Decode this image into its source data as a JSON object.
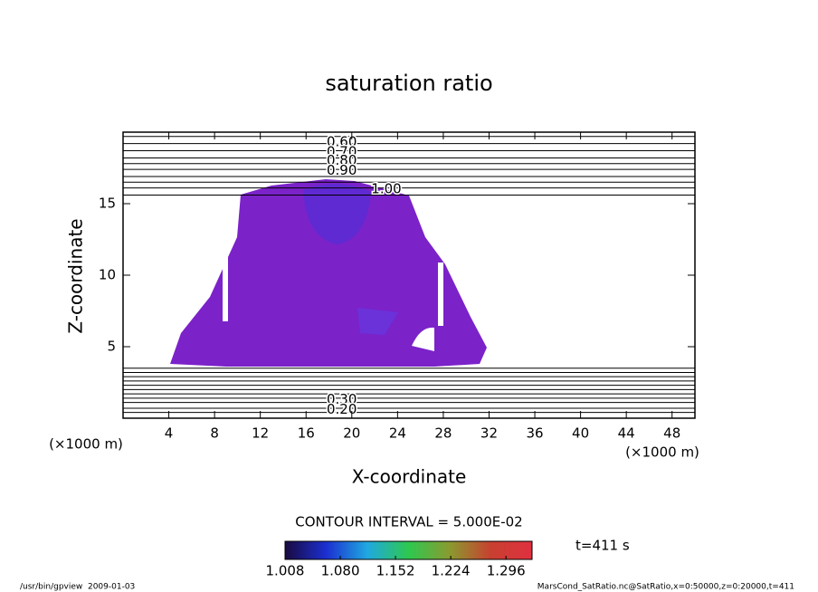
{
  "chart_data": {
    "type": "contour",
    "title": "saturation ratio",
    "x_label": "X-coordinate",
    "y_label": "Z-coordinate",
    "x_unit": "(×1000 m)",
    "y_unit": "(×1000 m)",
    "xlim": [
      0,
      50
    ],
    "ylim": [
      0,
      20
    ],
    "xticks": [
      4,
      8,
      12,
      16,
      20,
      24,
      28,
      32,
      36,
      40,
      44,
      48
    ],
    "yticks": [
      5,
      10,
      15
    ],
    "field_color": "#7b22c9",
    "contour_lines": [
      19.7,
      19.2,
      18.7,
      18.2,
      17.8,
      17.4,
      16.9,
      16.5,
      16.1,
      15.6,
      3.5,
      3.2,
      2.9,
      2.6,
      2.3,
      2.0,
      1.7,
      1.4,
      1.1,
      0.7,
      0.4
    ],
    "contour_labels": [
      {
        "value": 0.6,
        "label": "0.60",
        "x": 17.8,
        "z": 19.3
      },
      {
        "value": 0.7,
        "label": "0.70",
        "x": 17.8,
        "z": 18.6
      },
      {
        "value": 0.8,
        "label": "0.80",
        "x": 17.8,
        "z": 18.0
      },
      {
        "value": 0.9,
        "label": "0.90",
        "x": 17.8,
        "z": 17.3
      },
      {
        "value": 1.0,
        "label": "1.00",
        "x": 21.7,
        "z": 16.0
      },
      {
        "value": 0.3,
        "label": "0.30",
        "x": 17.8,
        "z": 1.3
      },
      {
        "value": 0.2,
        "label": "0.20",
        "x": 17.8,
        "z": 0.6
      }
    ],
    "contour_interval": "CONTOUR INTERVAL = 5.000E-02",
    "time_label": "t=411 s",
    "colorbar": {
      "lim": [
        1.008,
        1.33
      ],
      "ticks": [
        1.008,
        {
          "value": 1.08,
          "label": "1.080"
        },
        1.152,
        1.224,
        1.296
      ],
      "colors": [
        "#1a0a40",
        "#1b2fd0",
        "#20a8e0",
        "#2ec850",
        "#8a9a30",
        "#c84030",
        "#e03040"
      ]
    }
  },
  "footer": {
    "left": "/usr/bin/gpview  2009-01-03",
    "right": "MarsCond_SatRatio.nc@SatRatio,x=0:50000,z=0:20000,t=411"
  }
}
